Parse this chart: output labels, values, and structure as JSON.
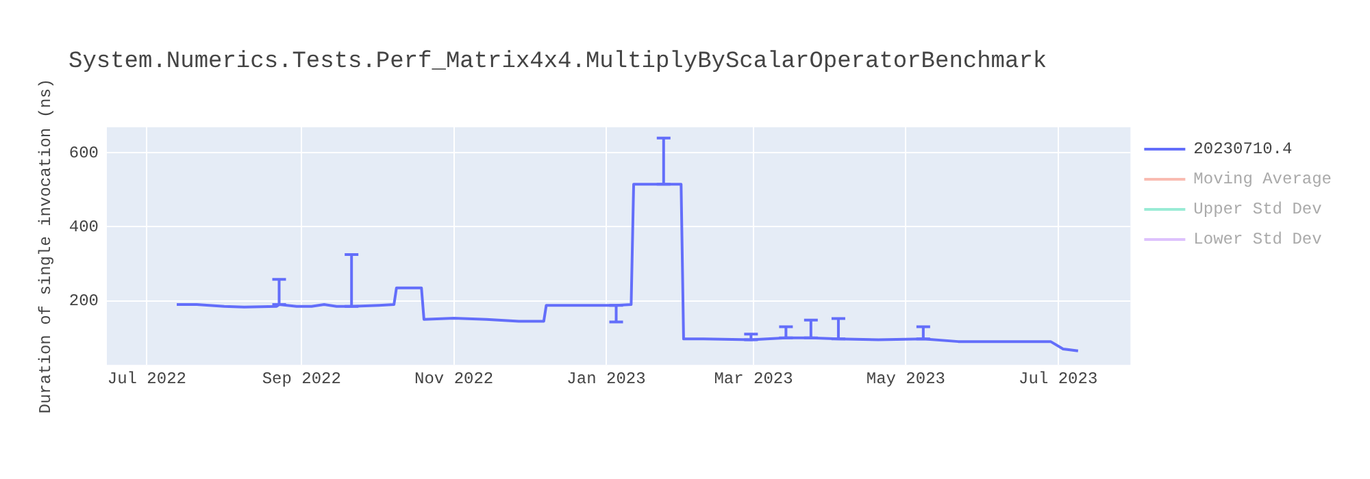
{
  "chart_data": {
    "type": "line",
    "title": "System.Numerics.Tests.Perf_Matrix4x4.MultiplyByScalarOperatorBenchmark",
    "ylabel": "Duration of single invocation (ns)",
    "x": [
      "2022-07-13",
      "2022-07-21",
      "2022-08-01",
      "2022-08-09",
      "2022-08-22",
      "2022-08-23",
      "2022-08-30",
      "2022-09-05",
      "2022-09-10",
      "2022-09-15",
      "2022-09-21",
      "2022-10-02",
      "2022-10-08",
      "2022-10-09",
      "2022-10-19",
      "2022-10-20",
      "2022-11-01",
      "2022-11-14",
      "2022-11-27",
      "2022-12-07",
      "2022-12-08",
      "2022-12-23",
      "2023-01-05",
      "2023-01-11",
      "2023-01-12",
      "2023-01-19",
      "2023-01-24",
      "2023-01-31",
      "2023-02-01",
      "2023-02-09",
      "2023-02-28",
      "2023-03-14",
      "2023-03-24",
      "2023-04-04",
      "2023-04-20",
      "2023-05-08",
      "2023-05-22",
      "2023-06-12",
      "2023-06-28",
      "2023-07-03",
      "2023-07-09"
    ],
    "series": [
      {
        "name": "20230710.4",
        "color": "#636efa",
        "values": [
          190,
          190,
          185,
          183,
          185,
          190,
          185,
          185,
          190,
          185,
          185,
          188,
          190,
          235,
          235,
          150,
          153,
          150,
          145,
          145,
          188,
          188,
          188,
          190,
          515,
          515,
          515,
          515,
          97,
          97,
          95,
          100,
          100,
          97,
          95,
          97,
          90,
          90,
          90,
          70,
          65
        ],
        "errors": [
          null,
          null,
          null,
          null,
          null,
          [
            190,
            258
          ],
          null,
          null,
          null,
          null,
          [
            185,
            325
          ],
          null,
          null,
          null,
          null,
          null,
          null,
          null,
          null,
          null,
          null,
          null,
          [
            143,
            188
          ],
          null,
          null,
          null,
          [
            515,
            640
          ],
          null,
          null,
          null,
          [
            95,
            110
          ],
          [
            100,
            130
          ],
          [
            100,
            148
          ],
          [
            97,
            152
          ],
          null,
          [
            97,
            130
          ],
          null,
          null,
          null,
          null,
          null
        ]
      },
      {
        "name": "Moving Average",
        "color": "#ef553b",
        "values": [
          null,
          null,
          null,
          null,
          null,
          null,
          null,
          null,
          null,
          null,
          null,
          null,
          null,
          null,
          null,
          null,
          null,
          null,
          null,
          null,
          null,
          null,
          null,
          null,
          null,
          null,
          null,
          null,
          null,
          null,
          null,
          null,
          null,
          null,
          null,
          null,
          null,
          null,
          null,
          null,
          null
        ]
      },
      {
        "name": "Upper Std Dev",
        "color": "#00cc96",
        "values": [
          null,
          null,
          null,
          null,
          null,
          null,
          null,
          null,
          null,
          null,
          null,
          null,
          null,
          null,
          null,
          null,
          null,
          null,
          null,
          null,
          null,
          null,
          null,
          null,
          null,
          null,
          null,
          null,
          null,
          null,
          null,
          null,
          null,
          null,
          null,
          null,
          null,
          null,
          null,
          null,
          null
        ]
      },
      {
        "name": "Lower Std Dev",
        "color": "#ab63fa",
        "values": [
          null,
          null,
          null,
          null,
          null,
          null,
          null,
          null,
          null,
          null,
          null,
          null,
          null,
          null,
          null,
          null,
          null,
          null,
          null,
          null,
          null,
          null,
          null,
          null,
          null,
          null,
          null,
          null,
          null,
          null,
          null,
          null,
          null,
          null,
          null,
          null,
          null,
          null,
          null,
          null,
          null
        ]
      }
    ],
    "xlim": [
      "2022-06-15",
      "2023-07-30"
    ],
    "xticks": [
      {
        "value": "2022-07-01",
        "label": "Jul 2022"
      },
      {
        "value": "2022-09-01",
        "label": "Sep 2022"
      },
      {
        "value": "2022-11-01",
        "label": "Nov 2022"
      },
      {
        "value": "2023-01-01",
        "label": "Jan 2023"
      },
      {
        "value": "2023-03-01",
        "label": "Mar 2023"
      },
      {
        "value": "2023-05-01",
        "label": "May 2023"
      },
      {
        "value": "2023-07-01",
        "label": "Jul 2023"
      }
    ],
    "ylim": [
      27,
      669
    ],
    "yticks": [
      200,
      400,
      600
    ],
    "grid": true,
    "legend": "top right"
  }
}
